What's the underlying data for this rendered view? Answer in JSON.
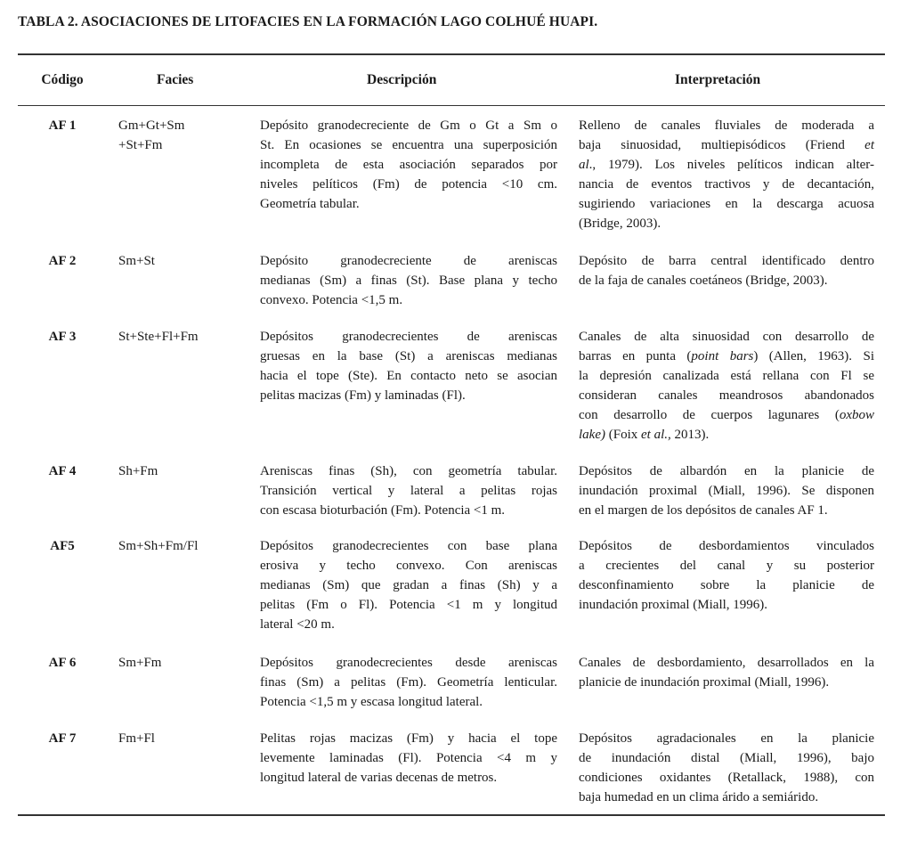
{
  "title": "TABLA 2. ASOCIACIONES DE LITOFACIES EN LA FORMACIÓN LAGO COLHUÉ HUAPI.",
  "headers": {
    "codigo": "Código",
    "facies": "Facies",
    "descripcion": "Descripción",
    "interpretacion": "Interpretación"
  },
  "rows": [
    {
      "codigo": "AF 1",
      "facies": [
        "Gm+Gt+Sm",
        "+St+Fm"
      ],
      "descripcion": [
        "Depósito granodecreciente de Gm o Gt a Sm o",
        "St. En ocasiones se encuentra una superposición",
        "incompleta de esta asociación separados por",
        "niveles pelíticos (Fm) de potencia <10 cm.",
        "Geometría tabular."
      ],
      "interpretacion": [
        "Relleno de canales fluviales de moderada a",
        "baja sinuosidad, multiepisódicos (Friend <i>et</i>",
        "<i>al</i>., 1979). Los niveles pelíticos indican alter-",
        "nancia de eventos tractivos y de decantación,",
        "sugiriendo variaciones en la descarga acuosa",
        "(Bridge, 2003)."
      ]
    },
    {
      "codigo": "AF 2",
      "facies": [
        "Sm+St"
      ],
      "descripcion": [
        "Depósito granodecreciente de areniscas",
        "medianas (Sm) a finas (St). Base plana y techo",
        "convexo. Potencia <1,5 m."
      ],
      "interpretacion": [
        "Depósito de barra central identificado dentro",
        "de la faja de canales coetáneos (Bridge, 2003)."
      ]
    },
    {
      "codigo": "AF 3",
      "facies": [
        "St+Ste+Fl+Fm"
      ],
      "descripcion": [
        "Depósitos granodecrecientes de areniscas",
        "gruesas en la base (St) a areniscas medianas",
        "hacia el tope (Ste). En contacto neto se asocian",
        "pelitas macizas (Fm) y laminadas (Fl)."
      ],
      "interpretacion": [
        "Canales de alta sinuosidad con desarrollo de",
        "barras en punta (<i>point bars</i>) (Allen, 1963). Si",
        "la depresión canalizada está rellana con Fl se",
        "consideran canales meandrosos abandonados",
        "con desarrollo de cuerpos lagunares (<i>oxbow</i>",
        "<i>lake)</i> (Foix <i>et al.,</i> 2013)."
      ]
    },
    {
      "codigo": "AF 4",
      "facies": [
        "Sh+Fm"
      ],
      "descripcion": [
        "Areniscas finas (Sh), con geometría tabular.",
        "Transición vertical y lateral a pelitas rojas",
        "con escasa bioturbación (Fm). Potencia <1 m."
      ],
      "interpretacion": [
        "Depósitos de albardón en la planicie de",
        "inundación proximal (Miall, 1996). Se disponen",
        "en el margen de los depósitos de canales AF 1."
      ]
    },
    {
      "codigo": "AF5",
      "facies": [
        "Sm+Sh+Fm/Fl"
      ],
      "descripcion": [
        "Depósitos granodecrecientes con base plana",
        "erosiva y techo convexo. Con areniscas",
        "medianas (Sm) que gradan a finas (Sh) y a",
        "pelitas (Fm o Fl). Potencia <1 m y longitud",
        "lateral <20 m."
      ],
      "interpretacion": [
        "Depósitos de desbordamientos vinculados",
        "a crecientes del canal y su posterior",
        "desconfinamiento sobre la planicie de",
        "inundación proximal (Miall, 1996)."
      ]
    },
    {
      "codigo": "AF 6",
      "facies": [
        "Sm+Fm"
      ],
      "descripcion": [
        "Depósitos granodecrecientes desde areniscas",
        "finas (Sm) a pelitas (Fm). Geometría lenticular.",
        "Potencia <1,5 m y escasa longitud lateral."
      ],
      "interpretacion": [
        "Canales de desbordamiento, desarrollados en la",
        "planicie de inundación proximal (Miall, 1996)."
      ]
    },
    {
      "codigo": "AF 7",
      "facies": [
        "Fm+Fl"
      ],
      "descripcion": [
        "Pelitas rojas macizas (Fm) y hacia el tope",
        "levemente laminadas (Fl). Potencia <4 m y",
        "longitud lateral de varias decenas de metros."
      ],
      "interpretacion": [
        "Depósitos agradacionales en la planicie",
        "de inundación distal (Miall, 1996), bajo",
        "condiciones oxidantes (Retallack, 1988), con",
        "baja humedad en un clima árido a semiárido."
      ]
    }
  ]
}
